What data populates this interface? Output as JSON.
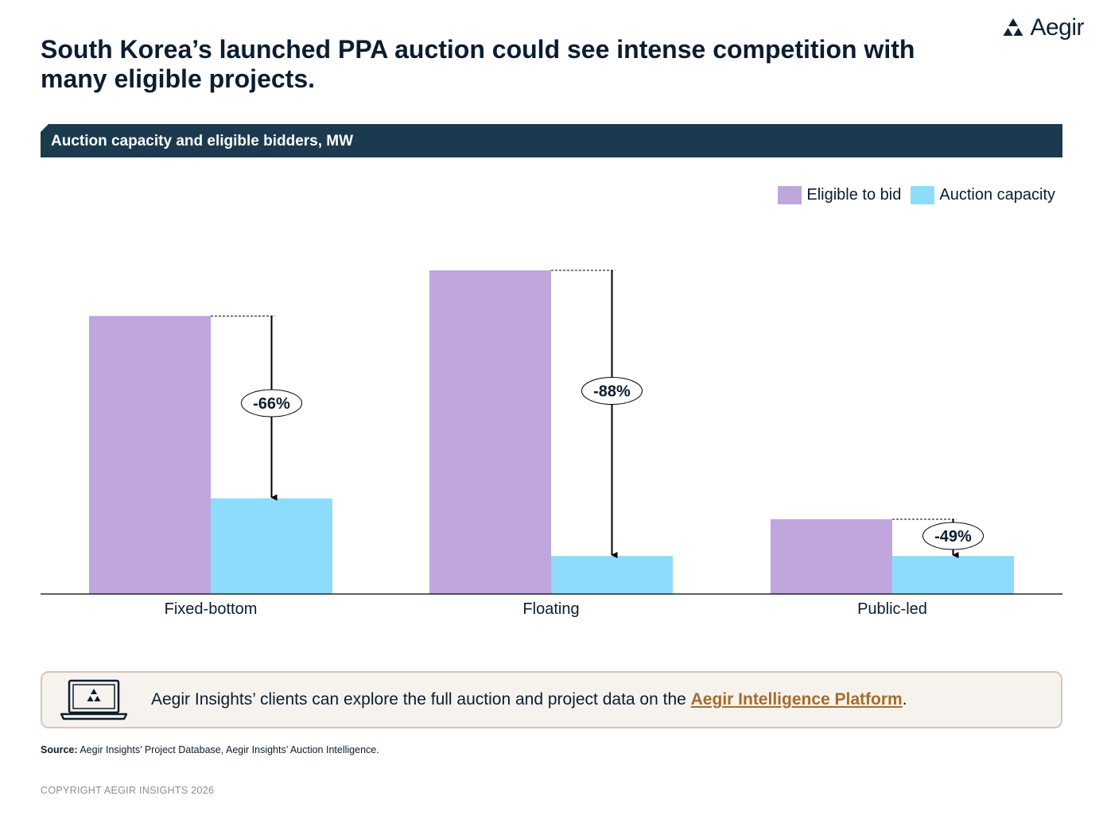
{
  "brand": {
    "name": "Aegir"
  },
  "title": "South Korea’s launched PPA auction could see intense competition with many eligible projects.",
  "chart_title": "Auction capacity and eligible bidders, MW",
  "colors": {
    "eligible": "#bfa6dc",
    "capacity": "#8ddcfc",
    "header": "#1b3a4f",
    "link": "#a56c2c"
  },
  "chart_data": {
    "type": "bar",
    "title": "Auction capacity and eligible bidders, MW",
    "xlabel": "",
    "ylabel": "MW",
    "categories": [
      "Fixed-bottom",
      "Floating",
      "Public-led"
    ],
    "series": [
      {
        "name": "Eligible to bid",
        "values": [
          1860,
          2165,
          500
        ]
      },
      {
        "name": "Auction capacity",
        "values": [
          640,
          255,
          255
        ]
      }
    ],
    "annotations": [
      "-66%",
      "-88%",
      "-49%"
    ],
    "ylim": [
      0,
      2500
    ],
    "grid": false,
    "legend": "top-right"
  },
  "cta": {
    "text": "Aegir Insights’ clients can explore the full auction and project data on the ",
    "link": "Aegir Intelligence Platform",
    "suffix": "."
  },
  "source": {
    "label": "Source:",
    "text": " Aegir Insights’ Project Database, Aegir Insights’ Auction Intelligence."
  },
  "copyright": "COPYRIGHT AEGIR INSIGHTS 2026"
}
